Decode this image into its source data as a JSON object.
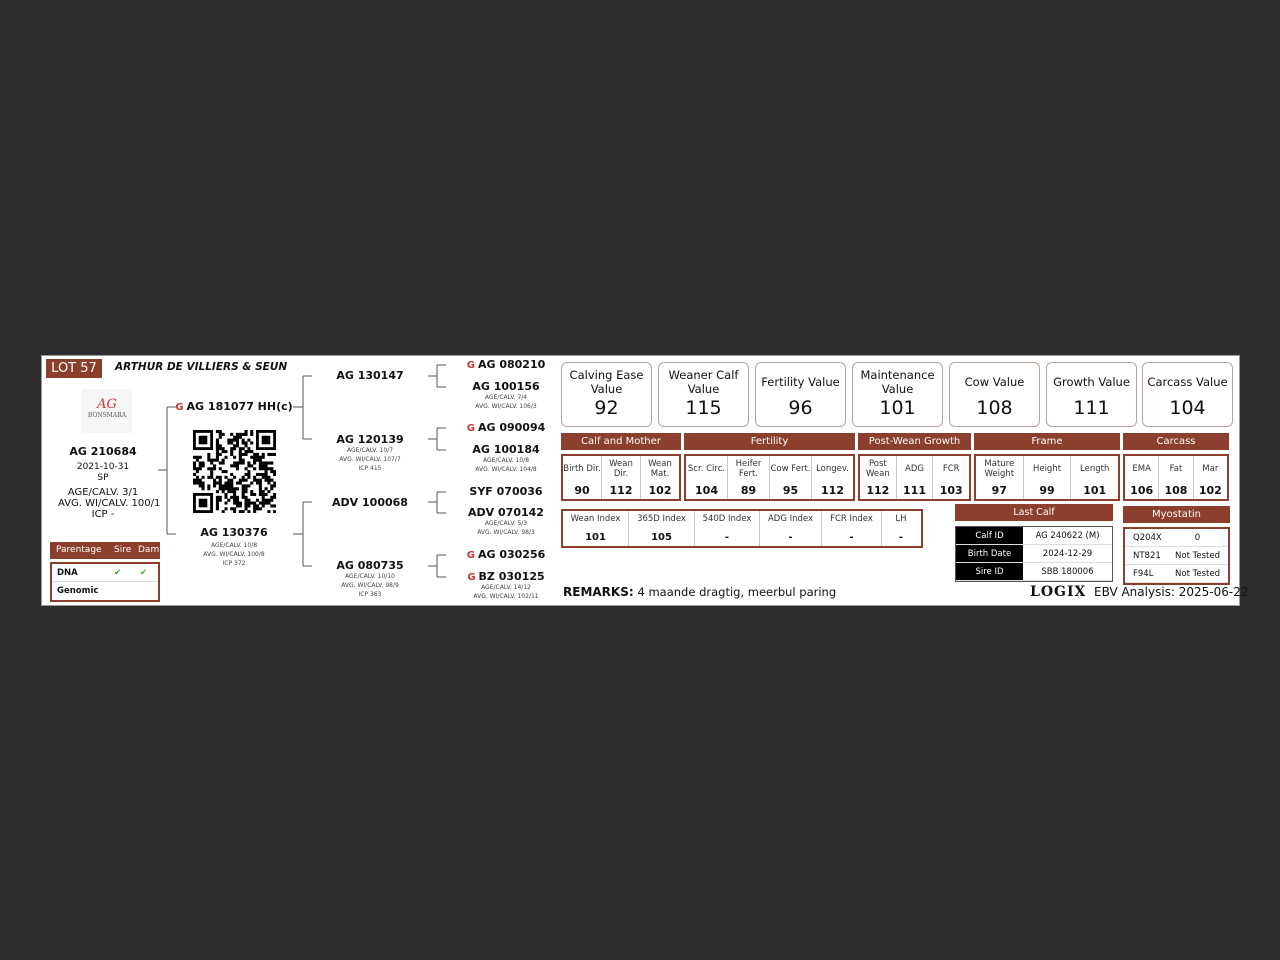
{
  "lot": "LOT 57",
  "owner": "ARTHUR DE VILLIERS & SEUN",
  "logo": {
    "text": "AG",
    "brand": "BONSMARA"
  },
  "animal": {
    "id": "AG 210684",
    "birth": "2021-10-31",
    "type": "SP",
    "age_calv": "AGE/CALV. 3/1",
    "avg_wi": "AVG. WI/CALV. 100/1",
    "icp": "ICP -"
  },
  "sire": {
    "id": "AG 181077 HH(c)",
    "genomic": true
  },
  "dam": {
    "id": "AG 130376",
    "age_calv": "AGE/CALV. 10/8",
    "avg_wi": "AVG. WI/CALV. 100/8",
    "icp": "ICP 372"
  },
  "gp": [
    {
      "id": "AG 130147"
    },
    {
      "id": "AG 120139",
      "age_calv": "AGE/CALV. 10/7",
      "avg_wi": "AVG. WI/CALV. 107/7",
      "icp": "ICP 415"
    },
    {
      "id": "ADV 100068"
    },
    {
      "id": "AG 080735",
      "age_calv": "AGE/CALV. 10/10",
      "avg_wi": "AVG. WI/CALV. 98/9",
      "icp": "ICP 363"
    }
  ],
  "ggp": [
    {
      "id": "AG 080210",
      "genomic": true
    },
    {
      "id": "AG 100156",
      "age_calv": "AGE/CALV. 7/4",
      "avg_wi": "AVG. WI/CALV. 106/3"
    },
    {
      "id": "AG 090094",
      "genomic": true
    },
    {
      "id": "AG 100184",
      "age_calv": "AGE/CALV. 10/8",
      "avg_wi": "AVG. WI/CALV. 104/8"
    },
    {
      "id": "SYF 070036"
    },
    {
      "id": "ADV 070142",
      "age_calv": "AGE/CALV. 5/3",
      "avg_wi": "AVG. WI/CALV. 98/3"
    },
    {
      "id": "AG 030256",
      "genomic": true
    },
    {
      "id": "BZ 030125",
      "genomic": true,
      "age_calv": "AGE/CALV. 14/12",
      "avg_wi": "AVG. WI/CALV. 102/11"
    }
  ],
  "parentage": {
    "headers": [
      "Parentage",
      "Sire",
      "Dam"
    ],
    "rows": [
      {
        "label": "DNA",
        "sire": "✔",
        "dam": "✔"
      },
      {
        "label": "Genomic",
        "sire": "",
        "dam": ""
      }
    ]
  },
  "values": [
    {
      "label": "Calving Ease Value",
      "value": "92"
    },
    {
      "label": "Weaner Calf Value",
      "value": "115"
    },
    {
      "label": "Fertility Value",
      "value": "96"
    },
    {
      "label": "Maintenance Value",
      "value": "101"
    },
    {
      "label": "Cow Value",
      "value": "108"
    },
    {
      "label": "Growth Value",
      "value": "111"
    },
    {
      "label": "Carcass Value",
      "value": "104"
    }
  ],
  "sections": [
    "Calf and Mother",
    "Fertility",
    "Post-Wean Growth",
    "Frame",
    "Carcass"
  ],
  "traits": [
    [
      {
        "h": "Birth Dir.",
        "v": "90"
      },
      {
        "h": "Wean Dir.",
        "v": "112"
      },
      {
        "h": "Wean Mat.",
        "v": "102"
      }
    ],
    [
      {
        "h": "Scr. Circ.",
        "v": "104"
      },
      {
        "h": "Heifer Fert.",
        "v": "89"
      },
      {
        "h": "Cow Fert.",
        "v": "95"
      },
      {
        "h": "Longev.",
        "v": "112"
      }
    ],
    [
      {
        "h": "Post Wean",
        "v": "112"
      },
      {
        "h": "ADG",
        "v": "111"
      },
      {
        "h": "FCR",
        "v": "103"
      }
    ],
    [
      {
        "h": "Mature Weight",
        "v": "97"
      },
      {
        "h": "Height",
        "v": "99"
      },
      {
        "h": "Length",
        "v": "101"
      }
    ],
    [
      {
        "h": "EMA",
        "v": "106"
      },
      {
        "h": "Fat",
        "v": "108"
      },
      {
        "h": "Mar",
        "v": "102"
      }
    ]
  ],
  "indexes": [
    {
      "h": "Wean Index",
      "v": "101"
    },
    {
      "h": "365D Index",
      "v": "105"
    },
    {
      "h": "540D Index",
      "v": "-"
    },
    {
      "h": "ADG Index",
      "v": "-"
    },
    {
      "h": "FCR Index",
      "v": "-"
    },
    {
      "h": "LH",
      "v": "-"
    }
  ],
  "last_calf": {
    "title": "Last Calf",
    "rows": [
      {
        "label": "Calf ID",
        "value": "AG 240622 (M)"
      },
      {
        "label": "Birth Date",
        "value": "2024-12-29"
      },
      {
        "label": "Sire ID",
        "value": "SBB 180006"
      }
    ]
  },
  "myostatin": {
    "title": "Myostatin",
    "rows": [
      {
        "label": "Q204X",
        "value": "0"
      },
      {
        "label": "NT821",
        "value": "Not Tested"
      },
      {
        "label": "F94L",
        "value": "Not Tested"
      }
    ]
  },
  "remarks": {
    "label": "REMARKS:",
    "text": "4 maande dragtig, meerbul paring"
  },
  "footer": {
    "logo": "LOGIX",
    "ebv": "EBV Analysis: 2025-06-22"
  },
  "colors": {
    "brand": "#8b3f2c",
    "check": "#2eaa2e",
    "genomic_icon": "#cc3333"
  }
}
